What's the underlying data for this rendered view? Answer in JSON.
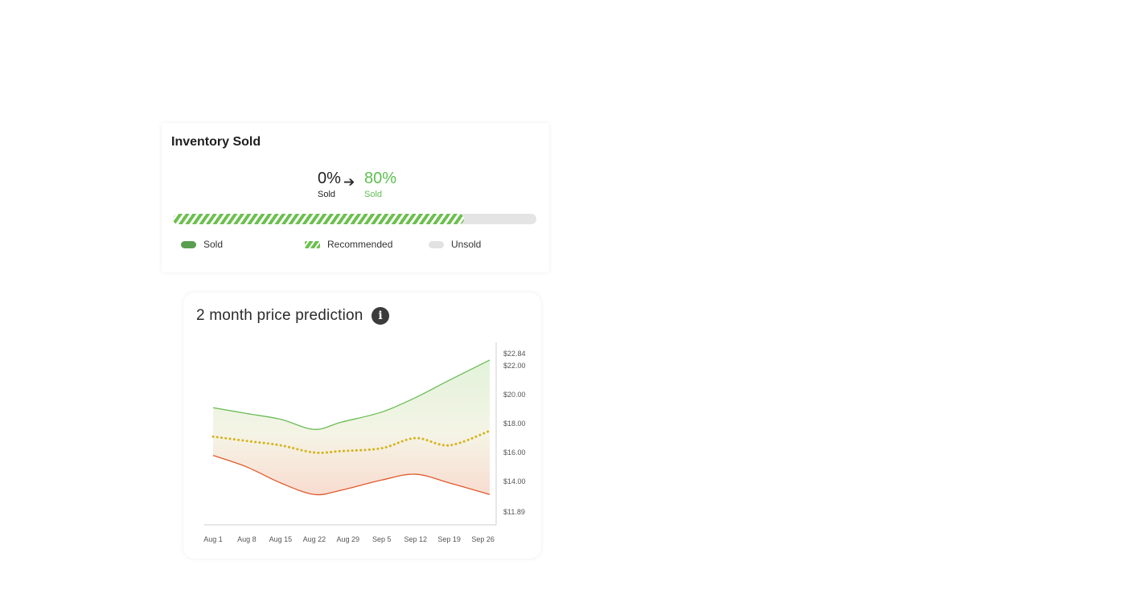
{
  "inventory": {
    "title": "Inventory Sold",
    "current": {
      "pct": "0%",
      "label": "Sold"
    },
    "target": {
      "pct": "80%",
      "label": "Sold"
    },
    "progress_fraction": 0.8,
    "legend": {
      "sold": "Sold",
      "recommended": "Recommended",
      "unsold": "Unsold"
    },
    "colors": {
      "sold": "#5a9e4f",
      "recommended": "#6cc04f",
      "unsold": "#e2e2e2"
    }
  },
  "price": {
    "title": "2 month price prediction"
  },
  "chart_data": {
    "type": "area",
    "x_labels": [
      "Aug 1",
      "Aug 8",
      "Aug 15",
      "Aug 22",
      "Aug 29",
      "Sep 5",
      "Sep 12",
      "Sep 19",
      "Sep 26"
    ],
    "y_tick_labels": [
      "$22.84",
      "$22.00",
      "$20.00",
      "$18.00",
      "$16.00",
      "$14.00",
      "$11.89"
    ],
    "y_ticks": [
      22.84,
      22.0,
      20.0,
      18.0,
      16.0,
      14.0,
      11.89
    ],
    "ylim": [
      11.89,
      22.84
    ],
    "series": [
      {
        "color": "#6bbd55",
        "x": [
          0,
          1,
          2,
          3,
          3.8,
          5,
          6,
          7,
          8.2
        ],
        "values": [
          19.1,
          18.7,
          18.3,
          17.6,
          18.1,
          18.8,
          19.8,
          21.0,
          22.4
        ]
      },
      {
        "color": "#d4b41a",
        "style": "dotted",
        "x": [
          0,
          1,
          2,
          3,
          3.8,
          5,
          6,
          7,
          8.2
        ],
        "values": [
          17.1,
          16.8,
          16.5,
          16.0,
          16.1,
          16.3,
          17.0,
          16.5,
          17.5
        ]
      },
      {
        "color": "#e0592d",
        "x": [
          0,
          1,
          2,
          3,
          3.8,
          5,
          6,
          7,
          8.2
        ],
        "values": [
          15.8,
          15.0,
          13.9,
          13.1,
          13.4,
          14.1,
          14.5,
          13.9,
          13.1
        ]
      }
    ],
    "grid": false
  }
}
